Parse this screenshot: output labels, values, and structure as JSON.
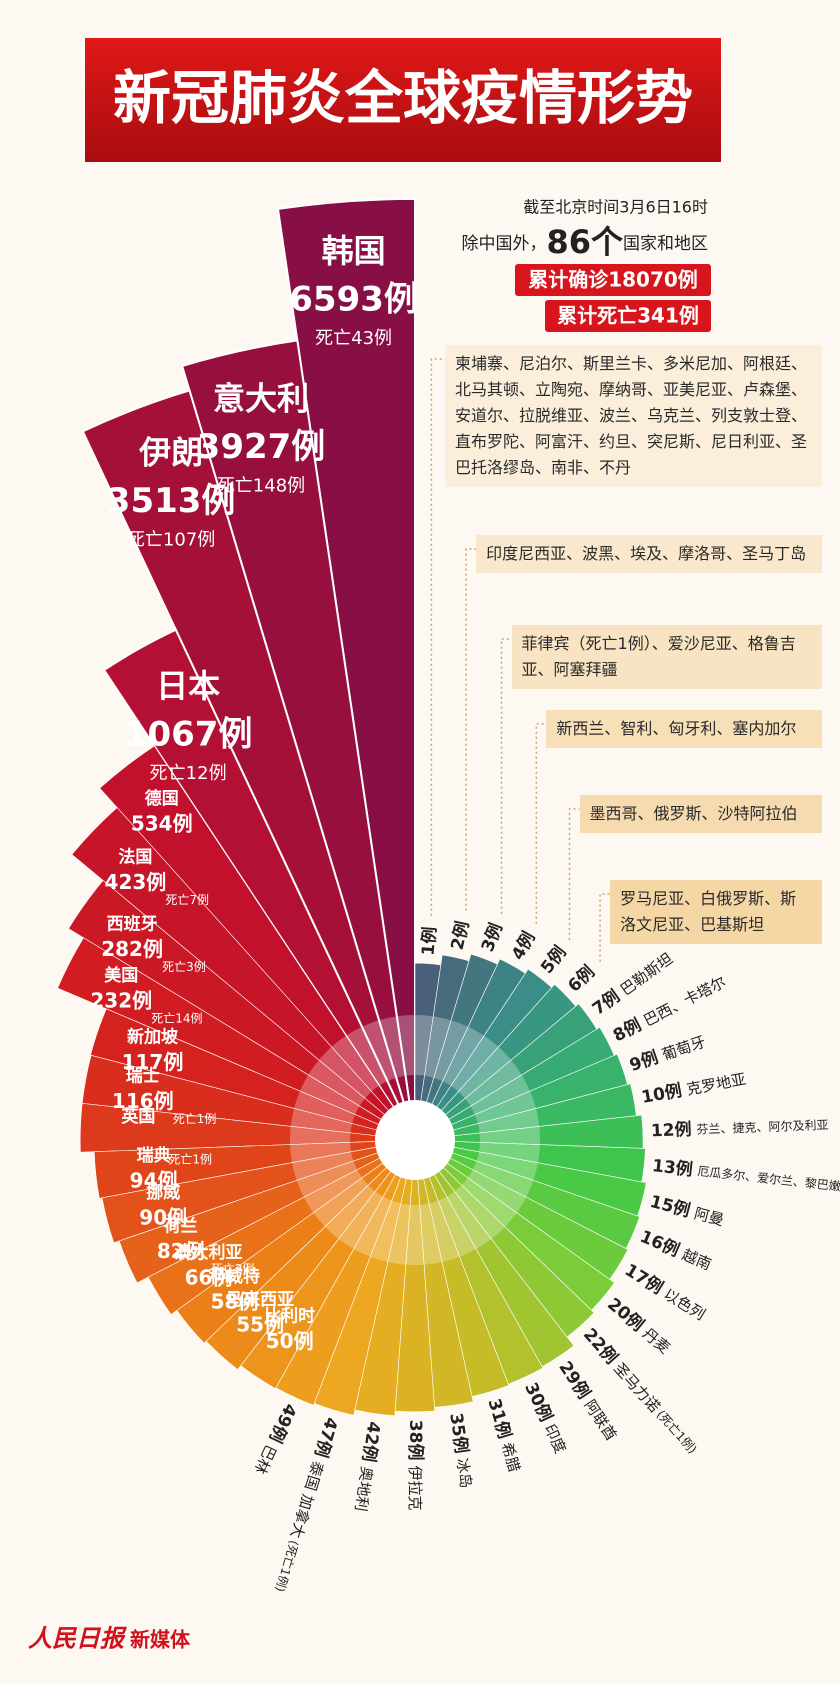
{
  "chart_data": {
    "type": "radial-bar",
    "title": "新冠肺炎全球疫情形势",
    "annotations": [
      "截至北京时间3月6日16时",
      "除中国外，",
      "86个",
      "国家和地区",
      "累计确诊18070例",
      "累计死亡341例"
    ],
    "categories": [
      "韩国",
      "意大利",
      "伊朗",
      "日本",
      "德国",
      "法国",
      "西班牙",
      "美国",
      "新加坡",
      "瑞士",
      "英国",
      "瑞典",
      "挪威",
      "荷兰",
      "澳大利亚",
      "科威特",
      "马来西亚",
      "比利时",
      "巴林",
      "泰国 加拿大",
      "奥地利",
      "伊拉克",
      "冰岛",
      "希腊",
      "印度",
      "阿联酋",
      "圣马力诺",
      "丹麦",
      "以色列",
      "越南",
      "阿曼",
      "厄瓜多尔、爱尔兰、黎巴嫩",
      "芬兰、捷克、阿尔及利亚",
      "克罗地亚",
      "葡萄牙",
      "巴西、卡塔尔",
      "巴勒斯坦",
      "罗马尼亚、白俄罗斯、斯洛文尼亚、巴基斯坦",
      "墨西哥、俄罗斯、沙特阿拉伯",
      "新西兰、智利、匈牙利、塞内加尔",
      "菲律宾（死亡1例）、爱沙尼亚、格鲁吉亚、阿塞拜疆",
      "印度尼西亚、波黑、埃及、摩洛哥、圣马丁岛",
      "柬埔寨、尼泊尔、斯里兰卡、多米尼加、阿根廷、北马其顿、立陶宛、摩纳哥、亚美尼亚、卢森堡、安道尔、拉脱维亚、波兰、乌克兰、列支敦士登、直布罗陀、阿富汗、约旦、突尼斯、尼日利亚、圣巴托洛缪岛、南非、不丹"
    ],
    "values": [
      6593,
      3927,
      3513,
      1067,
      534,
      423,
      282,
      232,
      117,
      116,
      116,
      94,
      90,
      82,
      66,
      58,
      55,
      50,
      49,
      47,
      42,
      38,
      35,
      31,
      30,
      29,
      22,
      20,
      17,
      16,
      15,
      13,
      12,
      10,
      9,
      8,
      7,
      6,
      5,
      4,
      3,
      2,
      1
    ],
    "value_labels": [
      "6593例",
      "3927例",
      "3513例",
      "1067例",
      "534例",
      "423例",
      "282例",
      "232例",
      "117例",
      "116例",
      null,
      "94例",
      "90例",
      "82例",
      "66例",
      "58例",
      "55例",
      "50例",
      "49例",
      "47例",
      "42例",
      "38例",
      "35例",
      "31例",
      "30例",
      "29例",
      "22例",
      "20例",
      "17例",
      "16例",
      "15例",
      "13例",
      "12例",
      "10例",
      "9例",
      "8例",
      "7例",
      "6例",
      "5例",
      "4例",
      "3例",
      "2例",
      "1例"
    ],
    "death_labels": [
      "死亡43例",
      "死亡148例",
      "死亡107例",
      "死亡12例",
      null,
      "死亡7例",
      "死亡3例",
      "死亡14例",
      null,
      "死亡1例",
      "死亡1例",
      null,
      null,
      "死亡2例",
      null,
      null,
      null,
      null,
      null,
      "(死亡1例)",
      null,
      null,
      null,
      null,
      null,
      null,
      "(死亡1例)",
      null,
      null,
      null,
      null,
      null,
      null,
      null,
      null,
      null,
      null,
      null,
      null,
      null,
      null,
      null,
      null
    ],
    "color_stops": [
      "#870f45",
      "#c0102e",
      "#d41e1e",
      "#e24a1a",
      "#ec8418",
      "#eea820",
      "#c8bc28",
      "#80cc38",
      "#40c848",
      "#38b070",
      "#3a8c88",
      "#4a6078"
    ]
  },
  "footer": {
    "brand": "人民日报",
    "channel": "新媒体"
  }
}
